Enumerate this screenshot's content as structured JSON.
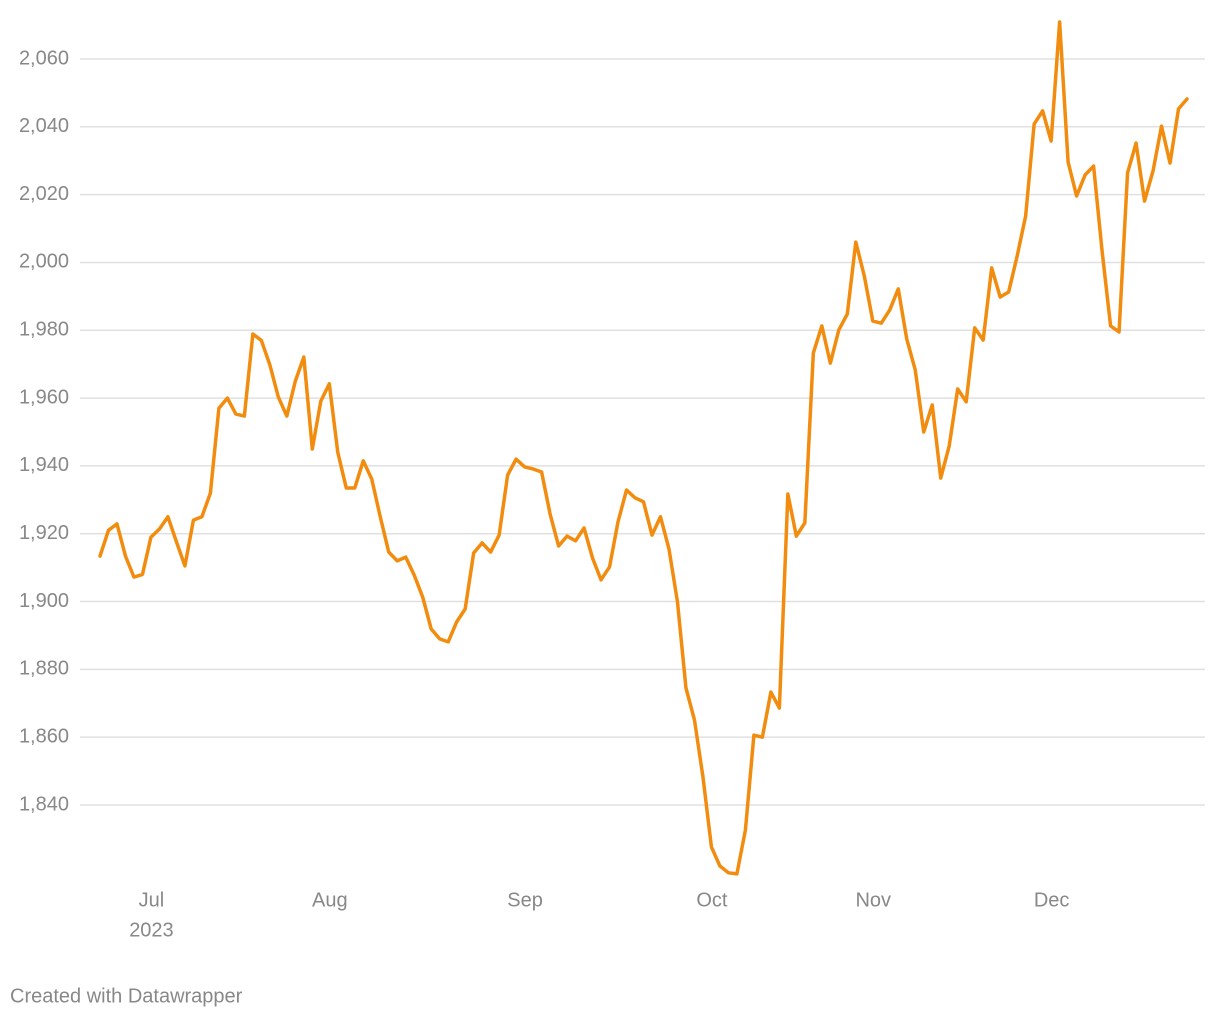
{
  "chart_data": {
    "type": "line",
    "categories": [
      null,
      null,
      null,
      null,
      null,
      null,
      null,
      "Jul",
      null,
      null,
      null,
      null,
      null,
      null,
      null,
      null,
      null,
      null,
      null,
      null,
      null,
      null,
      null,
      null,
      null,
      null,
      null,
      null,
      "Aug",
      null,
      null,
      null,
      null,
      null,
      null,
      null,
      null,
      null,
      null,
      null,
      null,
      null,
      null,
      null,
      null,
      null,
      null,
      null,
      null,
      null,
      null,
      "Sep",
      null,
      null,
      null,
      null,
      null,
      null,
      null,
      null,
      null,
      null,
      null,
      null,
      null,
      null,
      null,
      null,
      null,
      null,
      null,
      null,
      null,
      "Oct",
      null,
      null,
      null,
      null,
      null,
      null,
      null,
      null,
      null,
      null,
      null,
      null,
      null,
      null,
      null,
      null,
      null,
      null,
      "Nov",
      null,
      null,
      null,
      null,
      null,
      null,
      null,
      null,
      null,
      null,
      null,
      null,
      null,
      null,
      null,
      null,
      null,
      null,
      null,
      null,
      "Dec",
      null,
      null,
      null,
      null,
      null,
      null,
      null,
      null,
      null,
      null,
      null,
      null,
      null,
      null,
      null
    ],
    "x_year": "2023",
    "series": [
      {
        "color": "#f28c0f",
        "values": [
          1913.4,
          1921,
          1922.9,
          1913.4,
          1907.2,
          1908,
          1919,
          1921.4,
          1925,
          1917.6,
          1910.5,
          1924,
          1925,
          1932,
          1957,
          1960,
          1955.3,
          1954.7,
          1978.9,
          1977,
          1969.8,
          1960.3,
          1954.7,
          1965,
          1972.1,
          1945,
          1959.1,
          1964.2,
          1944,
          1933.5,
          1933.5,
          1941.5,
          1936.1,
          1925,
          1914.6,
          1912,
          1913.1,
          1907.8,
          1901.3,
          1891.9,
          1889,
          1888.1,
          1894,
          1897.8,
          1914.3,
          1917.3,
          1914.6,
          1919.6,
          1937.3,
          1942,
          1939.7,
          1939.1,
          1938.2,
          1925.8,
          1916.4,
          1919.3,
          1917.9,
          1921.7,
          1912.8,
          1906.4,
          1910.2,
          1923.5,
          1932.9,
          1930.6,
          1929.4,
          1919.6,
          1925,
          1915.5,
          1899.9,
          1874.5,
          1865.1,
          1848.3,
          1827.6,
          1822,
          1820,
          1819.7,
          1832.6,
          1860.6,
          1860,
          1873.3,
          1868.6,
          1931.7,
          1919.3,
          1923.2,
          1973.3,
          1981.3,
          1970.3,
          1980.1,
          1984.8,
          2006,
          1996,
          1982.7,
          1982.1,
          1986,
          1992.2,
          1977.4,
          1968.3,
          1950,
          1958,
          1936.4,
          1945.9,
          1962.7,
          1958.9,
          1980.7,
          1977.1,
          1998.4,
          1989.8,
          1991.3,
          2001.9,
          2013.7,
          2040.8,
          2044.7,
          2035.8,
          2070.9,
          2029.6,
          2019.6,
          2025.8,
          2028.4,
          2003.4,
          1981.3,
          1979.5,
          2026.4,
          2035.2,
          2018.1,
          2027,
          2040.2,
          2029.3,
          2045.3,
          2048.2
        ]
      }
    ],
    "ylim": [
      1818,
      2072
    ],
    "yticks": [
      {
        "value": 1840,
        "label": "1,840"
      },
      {
        "value": 1860,
        "label": "1,860"
      },
      {
        "value": 1880,
        "label": "1,880"
      },
      {
        "value": 1900,
        "label": "1,900"
      },
      {
        "value": 1920,
        "label": "1,920"
      },
      {
        "value": 1940,
        "label": "1,940"
      },
      {
        "value": 1960,
        "label": "1,960"
      },
      {
        "value": 1980,
        "label": "1,980"
      },
      {
        "value": 2000,
        "label": "2,000"
      },
      {
        "value": 2020,
        "label": "2,020"
      },
      {
        "value": 2040,
        "label": "2,040"
      },
      {
        "value": 2060,
        "label": "2,060"
      }
    ],
    "grid": true,
    "footer": "Created with Datawrapper"
  }
}
